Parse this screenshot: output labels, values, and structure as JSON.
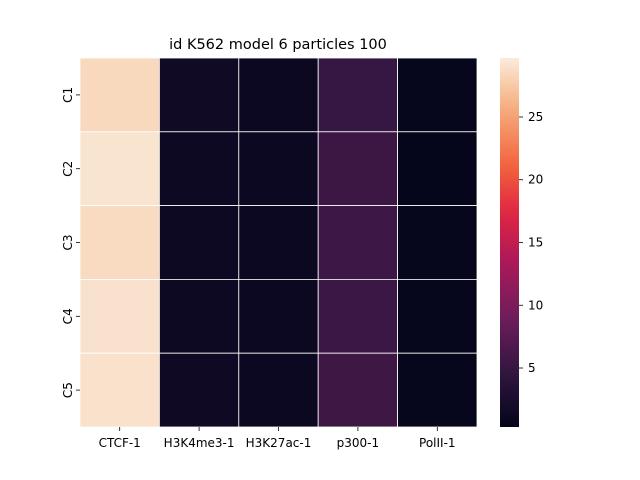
{
  "chart_data": {
    "type": "heatmap",
    "title": "id K562 model 6 particles 100",
    "rows": [
      "C1",
      "C2",
      "C3",
      "C4",
      "C5"
    ],
    "columns": [
      "CTCF-1",
      "H3K4me3-1",
      "H3K27ac-1",
      "p300-1",
      "PolII-1"
    ],
    "values": [
      [
        28.5,
        1.6,
        1.2,
        5.0,
        0.6
      ],
      [
        29.2,
        1.3,
        1.2,
        5.4,
        0.5
      ],
      [
        28.6,
        1.3,
        1.1,
        5.5,
        0.6
      ],
      [
        29.1,
        1.3,
        1.2,
        5.3,
        0.6
      ],
      [
        29.0,
        1.4,
        1.2,
        5.6,
        0.6
      ]
    ],
    "colorbar": {
      "vmin": 0.3,
      "vmax": 29.7,
      "ticks": [
        "5",
        "10",
        "15",
        "20",
        "25"
      ],
      "colormap": "rocket"
    },
    "cell_border_color": "#ffffff"
  }
}
